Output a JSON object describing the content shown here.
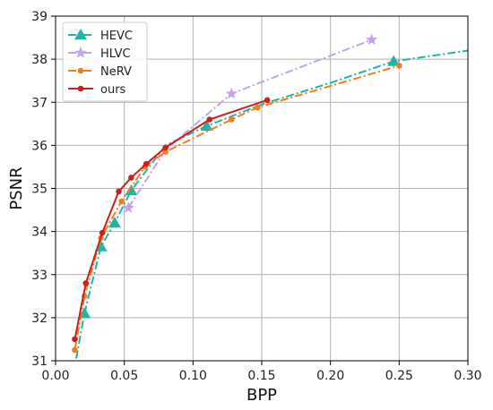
{
  "chart_data": {
    "type": "line",
    "title": "",
    "xlabel": "BPP",
    "ylabel": "PSNR",
    "xlim": [
      0.0,
      0.3
    ],
    "ylim": [
      31,
      39
    ],
    "xticks": [
      0.0,
      0.05,
      0.1,
      0.15,
      0.2,
      0.25,
      0.3
    ],
    "xtick_labels": [
      "0.00",
      "0.05",
      "0.10",
      "0.15",
      "0.20",
      "0.25",
      "0.30"
    ],
    "yticks": [
      31,
      32,
      33,
      34,
      35,
      36,
      37,
      38,
      39
    ],
    "ytick_labels": [
      "31",
      "32",
      "33",
      "34",
      "35",
      "36",
      "37",
      "38",
      "39"
    ],
    "grid": true,
    "legend_position": "top-left",
    "series": [
      {
        "name": "HEVC",
        "color": "#1fb5a6",
        "linestyle": "dashdot",
        "marker": "triangle",
        "line_x": [
          0.015,
          0.021,
          0.033,
          0.043,
          0.055,
          0.08,
          0.11,
          0.15,
          0.2,
          0.246,
          0.3
        ],
        "line_y": [
          31.05,
          32.1,
          33.65,
          34.2,
          34.95,
          36.0,
          36.45,
          36.95,
          37.45,
          37.95,
          38.2
        ],
        "marker_x": [
          0.021,
          0.033,
          0.043,
          0.055,
          0.11,
          0.246
        ],
        "marker_y": [
          32.1,
          33.65,
          34.2,
          34.95,
          36.45,
          37.95
        ]
      },
      {
        "name": "HLVC",
        "color": "#c5a3e6",
        "linestyle": "dashdot",
        "marker": "star",
        "line_x": [
          0.053,
          0.08,
          0.128,
          0.23
        ],
        "line_y": [
          34.55,
          35.9,
          37.2,
          38.45
        ],
        "marker_x": [
          0.053,
          0.128,
          0.23
        ],
        "marker_y": [
          34.55,
          37.2,
          38.45
        ]
      },
      {
        "name": "NeRV",
        "color": "#f07f1a",
        "linestyle": "dashdot",
        "marker": "circle",
        "line_x": [
          0.014,
          0.021,
          0.033,
          0.048,
          0.065,
          0.08,
          0.128,
          0.147,
          0.25
        ],
        "line_y": [
          31.25,
          32.5,
          33.85,
          34.7,
          35.5,
          35.85,
          36.6,
          36.88,
          37.85
        ],
        "marker_x": [
          0.014,
          0.021,
          0.033,
          0.048,
          0.065,
          0.08,
          0.128,
          0.147,
          0.25
        ],
        "marker_y": [
          31.25,
          32.5,
          33.85,
          34.7,
          35.5,
          35.85,
          36.6,
          36.88,
          37.85
        ]
      },
      {
        "name": "ours",
        "color": "#cc1f1f",
        "linestyle": "solid",
        "marker": "circle",
        "line_x": [
          0.014,
          0.022,
          0.034,
          0.046,
          0.055,
          0.066,
          0.08,
          0.112,
          0.154
        ],
        "line_y": [
          31.5,
          32.8,
          33.97,
          34.93,
          35.25,
          35.57,
          35.95,
          36.6,
          37.05
        ],
        "marker_x": [
          0.014,
          0.022,
          0.034,
          0.046,
          0.055,
          0.066,
          0.08,
          0.112,
          0.154
        ],
        "marker_y": [
          31.5,
          32.8,
          33.97,
          34.93,
          35.25,
          35.57,
          35.95,
          36.6,
          37.05
        ]
      }
    ]
  }
}
